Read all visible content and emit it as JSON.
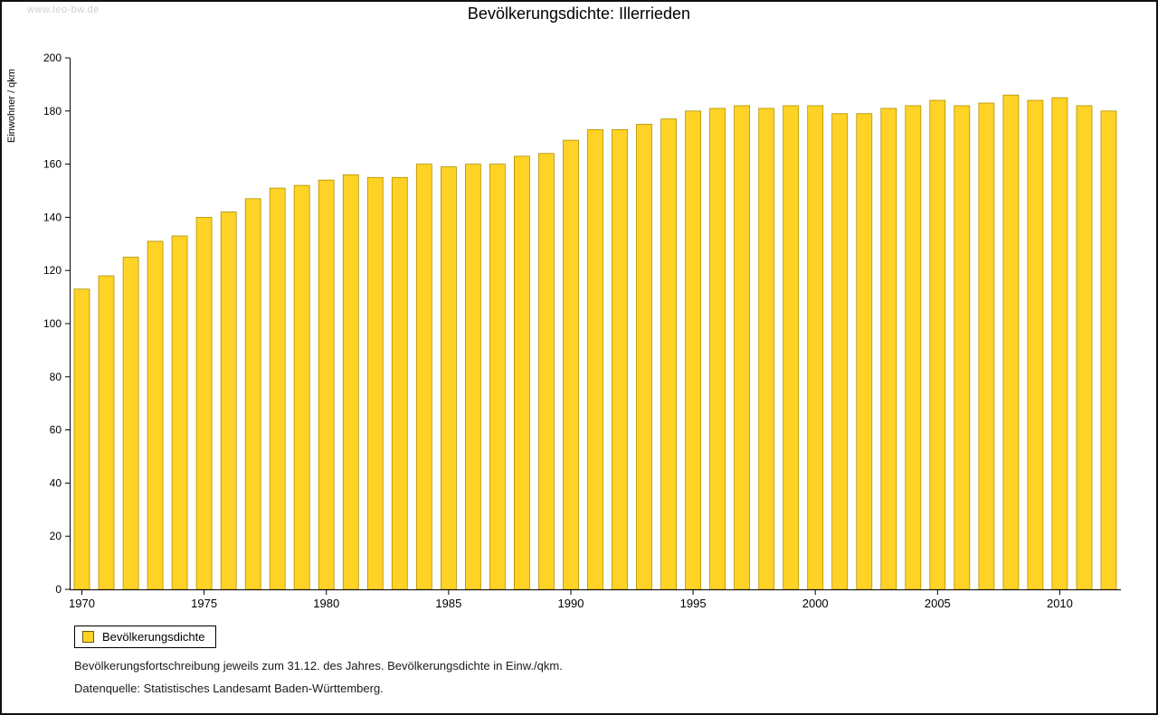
{
  "watermark": "www.leo-bw.de",
  "title": "Bevölkerungsdichte: Illerrieden",
  "legend": {
    "label": "Bevölkerungsdichte"
  },
  "footnotes": [
    "Bevölkerungsfortschreibung jeweils zum 31.12. des Jahres. Bevölkerungsdichte in Einw./qkm.",
    "Datenquelle: Statistisches Landesamt Baden-Württemberg."
  ],
  "colors": {
    "bar_fill": "#FFD326",
    "bar_border": "#B09000",
    "axis": "#000000"
  },
  "chart_data": {
    "type": "bar",
    "title": "Bevölkerungsdichte: Illerrieden",
    "xlabel": "",
    "ylabel": "Einwohner / qkm",
    "ylim": [
      0,
      200
    ],
    "ytick_step": 20,
    "grid": false,
    "legend_position": "bottom-left",
    "legend_entries": [
      "Bevölkerungsdichte"
    ],
    "xticks": [
      1970,
      1975,
      1980,
      1985,
      1990,
      1995,
      2000,
      2005,
      2010
    ],
    "categories": [
      1970,
      1971,
      1972,
      1973,
      1974,
      1975,
      1976,
      1977,
      1978,
      1979,
      1980,
      1981,
      1982,
      1983,
      1984,
      1985,
      1986,
      1987,
      1988,
      1989,
      1990,
      1991,
      1992,
      1993,
      1994,
      1995,
      1996,
      1997,
      1998,
      1999,
      2000,
      2001,
      2002,
      2003,
      2004,
      2005,
      2006,
      2007,
      2008,
      2009,
      2010,
      2011,
      2012
    ],
    "values": [
      113,
      118,
      125,
      131,
      133,
      140,
      142,
      147,
      151,
      152,
      154,
      156,
      155,
      155,
      160,
      159,
      160,
      160,
      163,
      164,
      169,
      173,
      173,
      175,
      177,
      180,
      181,
      182,
      181,
      182,
      182,
      179,
      179,
      181,
      182,
      184,
      182,
      183,
      186,
      184,
      185,
      182,
      180
    ]
  }
}
